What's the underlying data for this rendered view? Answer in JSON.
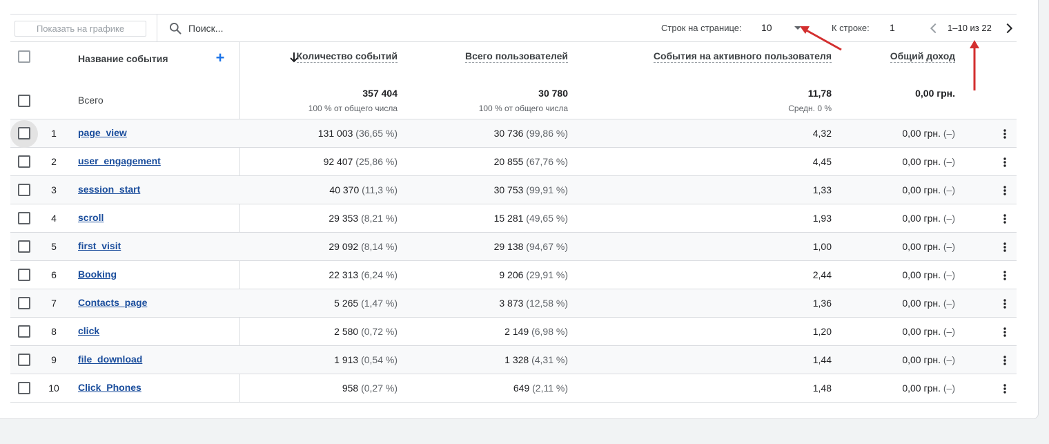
{
  "toolbar": {
    "plot_button_label": "Показать на графике",
    "search_placeholder": "Поиск...",
    "rows_per_page_label": "Строк на странице:",
    "rows_per_page_value": "10",
    "goto_row_label": "К строке:",
    "goto_row_value": "1",
    "page_range": "1–10 из 22"
  },
  "columns": {
    "event_name": "Название события",
    "event_count": "Количество событий",
    "total_users": "Всего пользователей",
    "events_per_active_user": "События на активного пользователя",
    "total_revenue": "Общий доход"
  },
  "totals": {
    "label": "Всего",
    "event_count": "357 404",
    "event_count_sub": "100 % от общего числа",
    "total_users": "30 780",
    "total_users_sub": "100 % от общего числа",
    "events_per_user": "11,78",
    "events_per_user_sub": "Средн. 0 %",
    "revenue": "0,00 грн."
  },
  "rows": [
    {
      "n": "1",
      "name": "page_view",
      "count": "131 003",
      "count_pct": "(36,65 %)",
      "users": "30 736",
      "users_pct": "(99,86 %)",
      "per_user": "4,32",
      "revenue": "0,00 грн.",
      "revenue_pct": "(–)"
    },
    {
      "n": "2",
      "name": "user_engagement",
      "count": "92 407",
      "count_pct": "(25,86 %)",
      "users": "20 855",
      "users_pct": "(67,76 %)",
      "per_user": "4,45",
      "revenue": "0,00 грн.",
      "revenue_pct": "(–)"
    },
    {
      "n": "3",
      "name": "session_start",
      "count": "40 370",
      "count_pct": "(11,3 %)",
      "users": "30 753",
      "users_pct": "(99,91 %)",
      "per_user": "1,33",
      "revenue": "0,00 грн.",
      "revenue_pct": "(–)"
    },
    {
      "n": "4",
      "name": "scroll",
      "count": "29 353",
      "count_pct": "(8,21 %)",
      "users": "15 281",
      "users_pct": "(49,65 %)",
      "per_user": "1,93",
      "revenue": "0,00 грн.",
      "revenue_pct": "(–)"
    },
    {
      "n": "5",
      "name": "first_visit",
      "count": "29 092",
      "count_pct": "(8,14 %)",
      "users": "29 138",
      "users_pct": "(94,67 %)",
      "per_user": "1,00",
      "revenue": "0,00 грн.",
      "revenue_pct": "(–)"
    },
    {
      "n": "6",
      "name": "Booking",
      "count": "22 313",
      "count_pct": "(6,24 %)",
      "users": "9 206",
      "users_pct": "(29,91 %)",
      "per_user": "2,44",
      "revenue": "0,00 грн.",
      "revenue_pct": "(–)"
    },
    {
      "n": "7",
      "name": "Contacts_page",
      "count": "5 265",
      "count_pct": "(1,47 %)",
      "users": "3 873",
      "users_pct": "(12,58 %)",
      "per_user": "1,36",
      "revenue": "0,00 грн.",
      "revenue_pct": "(–)"
    },
    {
      "n": "8",
      "name": "click",
      "count": "2 580",
      "count_pct": "(0,72 %)",
      "users": "2 149",
      "users_pct": "(6,98 %)",
      "per_user": "1,20",
      "revenue": "0,00 грн.",
      "revenue_pct": "(–)"
    },
    {
      "n": "9",
      "name": "file_download",
      "count": "1 913",
      "count_pct": "(0,54 %)",
      "users": "1 328",
      "users_pct": "(4,31 %)",
      "per_user": "1,44",
      "revenue": "0,00 грн.",
      "revenue_pct": "(–)"
    },
    {
      "n": "10",
      "name": "Click_Phones",
      "count": "958",
      "count_pct": "(0,27 %)",
      "users": "649",
      "users_pct": "(2,11 %)",
      "per_user": "1,48",
      "revenue": "0,00 грн.",
      "revenue_pct": "(–)"
    }
  ],
  "colors": {
    "accent": "#1a73e8",
    "link": "#1a4d9c",
    "annotation_arrow": "#d32f2f"
  }
}
